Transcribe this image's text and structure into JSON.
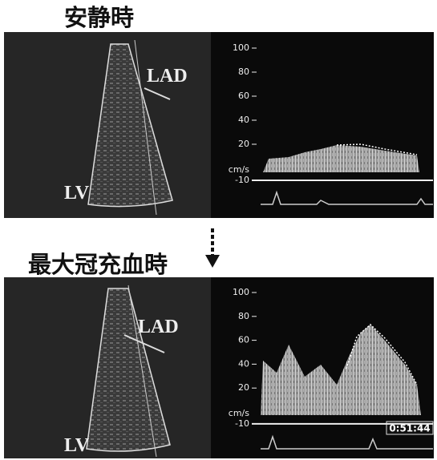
{
  "panels": [
    {
      "title": "安静時",
      "vessel_label": "LAD",
      "chamber_label": "LV",
      "scale": {
        "ticks": [
          100,
          80,
          60,
          40,
          20
        ],
        "unit": "cm/s",
        "baseline": -10
      }
    },
    {
      "title": "最大冠充血時",
      "vessel_label": "LAD",
      "chamber_label": "LV",
      "scale": {
        "ticks": [
          100,
          80,
          60,
          40,
          20
        ],
        "unit": "cm/s",
        "baseline": -10
      },
      "timestamp": "0:51:44"
    }
  ]
}
